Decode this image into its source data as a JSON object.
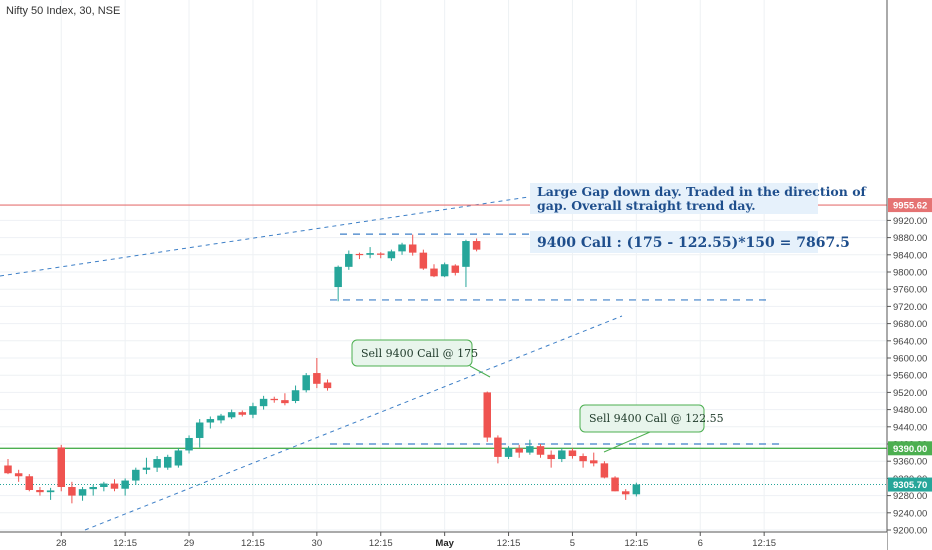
{
  "chart_data": {
    "type": "candlestick",
    "title": "Nifty 50 Index, 30, NSE",
    "y_ticks": [
      9200,
      9240,
      9280,
      9320,
      9360,
      9400,
      9440,
      9480,
      9520,
      9560,
      9600,
      9640,
      9680,
      9720,
      9760,
      9800,
      9840,
      9880,
      9920
    ],
    "x_ticks": [
      {
        "label": "28",
        "idx": 5,
        "bold": false
      },
      {
        "label": "12:15",
        "idx": 11,
        "bold": false
      },
      {
        "label": "29",
        "idx": 17,
        "bold": false
      },
      {
        "label": "12:15",
        "idx": 23,
        "bold": false
      },
      {
        "label": "30",
        "idx": 29,
        "bold": false
      },
      {
        "label": "12:15",
        "idx": 35,
        "bold": false
      },
      {
        "label": "May",
        "idx": 41,
        "bold": true
      },
      {
        "label": "12:15",
        "idx": 47,
        "bold": false
      },
      {
        "label": "5",
        "idx": 53,
        "bold": false
      },
      {
        "label": "12:15",
        "idx": 59,
        "bold": false
      },
      {
        "label": "6",
        "idx": 65,
        "bold": false
      },
      {
        "label": "12:15",
        "idx": 71,
        "bold": false
      }
    ],
    "candles": [
      [
        9350,
        9365,
        9330,
        9332
      ],
      [
        9332,
        9340,
        9312,
        9325
      ],
      [
        9325,
        9330,
        9290,
        9293
      ],
      [
        9293,
        9300,
        9280,
        9288
      ],
      [
        9288,
        9298,
        9270,
        9292
      ],
      [
        9392,
        9398,
        9290,
        9300
      ],
      [
        9300,
        9312,
        9262,
        9280
      ],
      [
        9280,
        9300,
        9268,
        9295
      ],
      [
        9295,
        9305,
        9280,
        9300
      ],
      [
        9300,
        9312,
        9290,
        9308
      ],
      [
        9308,
        9318,
        9290,
        9296
      ],
      [
        9296,
        9320,
        9280,
        9315
      ],
      [
        9315,
        9345,
        9305,
        9340
      ],
      [
        9340,
        9368,
        9330,
        9345
      ],
      [
        9345,
        9372,
        9335,
        9365
      ],
      [
        9345,
        9375,
        9340,
        9370
      ],
      [
        9350,
        9390,
        9345,
        9385
      ],
      [
        9385,
        9420,
        9378,
        9414
      ],
      [
        9414,
        9458,
        9392,
        9450
      ],
      [
        9450,
        9464,
        9436,
        9458
      ],
      [
        9455,
        9470,
        9448,
        9466
      ],
      [
        9462,
        9480,
        9458,
        9474
      ],
      [
        9474,
        9478,
        9464,
        9468
      ],
      [
        9468,
        9496,
        9460,
        9488
      ],
      [
        9488,
        9512,
        9480,
        9505
      ],
      [
        9505,
        9510,
        9496,
        9502
      ],
      [
        9502,
        9518,
        9490,
        9495
      ],
      [
        9500,
        9536,
        9495,
        9525
      ],
      [
        9525,
        9565,
        9520,
        9560
      ],
      [
        9565,
        9600,
        9530,
        9540
      ],
      [
        9543,
        9550,
        9524,
        9530
      ],
      [
        9765,
        9815,
        9732,
        9812
      ],
      [
        9812,
        9850,
        9805,
        9842
      ],
      [
        9842,
        9845,
        9830,
        9840
      ],
      [
        9840,
        9858,
        9832,
        9844
      ],
      [
        9843,
        9846,
        9832,
        9840
      ],
      [
        9832,
        9852,
        9826,
        9848
      ],
      [
        9848,
        9868,
        9840,
        9864
      ],
      [
        9864,
        9887,
        9838,
        9845
      ],
      [
        9845,
        9852,
        9805,
        9808
      ],
      [
        9808,
        9818,
        9788,
        9790
      ],
      [
        9790,
        9822,
        9788,
        9818
      ],
      [
        9815,
        9818,
        9792,
        9798
      ],
      [
        9812,
        9875,
        9765,
        9872
      ],
      [
        9872,
        9878,
        9848,
        9852
      ],
      [
        9520,
        9522,
        9405,
        9415
      ],
      [
        9415,
        9420,
        9355,
        9370
      ],
      [
        9370,
        9395,
        9365,
        9390
      ],
      [
        9390,
        9398,
        9368,
        9380
      ],
      [
        9380,
        9410,
        9375,
        9395
      ],
      [
        9395,
        9400,
        9368,
        9375
      ],
      [
        9375,
        9385,
        9345,
        9365
      ],
      [
        9365,
        9390,
        9358,
        9385
      ],
      [
        9385,
        9390,
        9366,
        9372
      ],
      [
        9372,
        9378,
        9345,
        9360
      ],
      [
        9362,
        9380,
        9348,
        9355
      ],
      [
        9355,
        9360,
        9320,
        9322
      ],
      [
        9322,
        9325,
        9290,
        9290
      ],
      [
        9290,
        9295,
        9270,
        9283
      ],
      [
        9283,
        9310,
        9278,
        9306
      ]
    ],
    "price_badges": [
      {
        "label": "9955.62",
        "value": 9955.62,
        "color": "#e57373",
        "text_color": "#ffffff"
      },
      {
        "label": "9390.00",
        "value": 9390,
        "color": "#4caf50",
        "text_color": "#ffffff"
      },
      {
        "label": "9305.70",
        "value": 9305.7,
        "color": "#26a69a",
        "text_color": "#ffffff"
      }
    ],
    "notes": {
      "gap_line1": "Large Gap down day. Traded in the direction of",
      "gap_line2": "gap.  Overall straight trend day.",
      "calc": "9400 Call : (175 - 122.55)*150 = 7867.5",
      "sell1": "Sell 9400 Call @ 175",
      "sell2": "Sell 9400 Call @ 122.55"
    },
    "colors": {
      "up": "#26a69a",
      "down": "#ef5350",
      "resistance_line": "#e57373",
      "support_line": "#4caf50",
      "close_line": "#26a69a",
      "dashed": "#3d7fc7",
      "note_bg": "#e6f1fb",
      "callout_bg": "#e8f5ec",
      "callout_border": "#4caf50"
    }
  }
}
